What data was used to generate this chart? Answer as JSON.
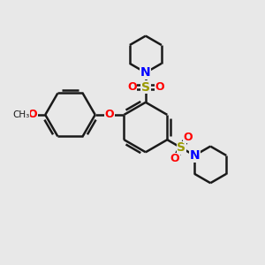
{
  "bg": "#e8e8e8",
  "bond_color": "#1a1a1a",
  "S_color": "#999900",
  "O_color": "#ff0000",
  "N_color": "#0000ff",
  "lw": 1.8,
  "figsize": [
    3.0,
    3.0
  ],
  "dpi": 100,
  "xlim": [
    0,
    10
  ],
  "ylim": [
    0,
    10
  ]
}
